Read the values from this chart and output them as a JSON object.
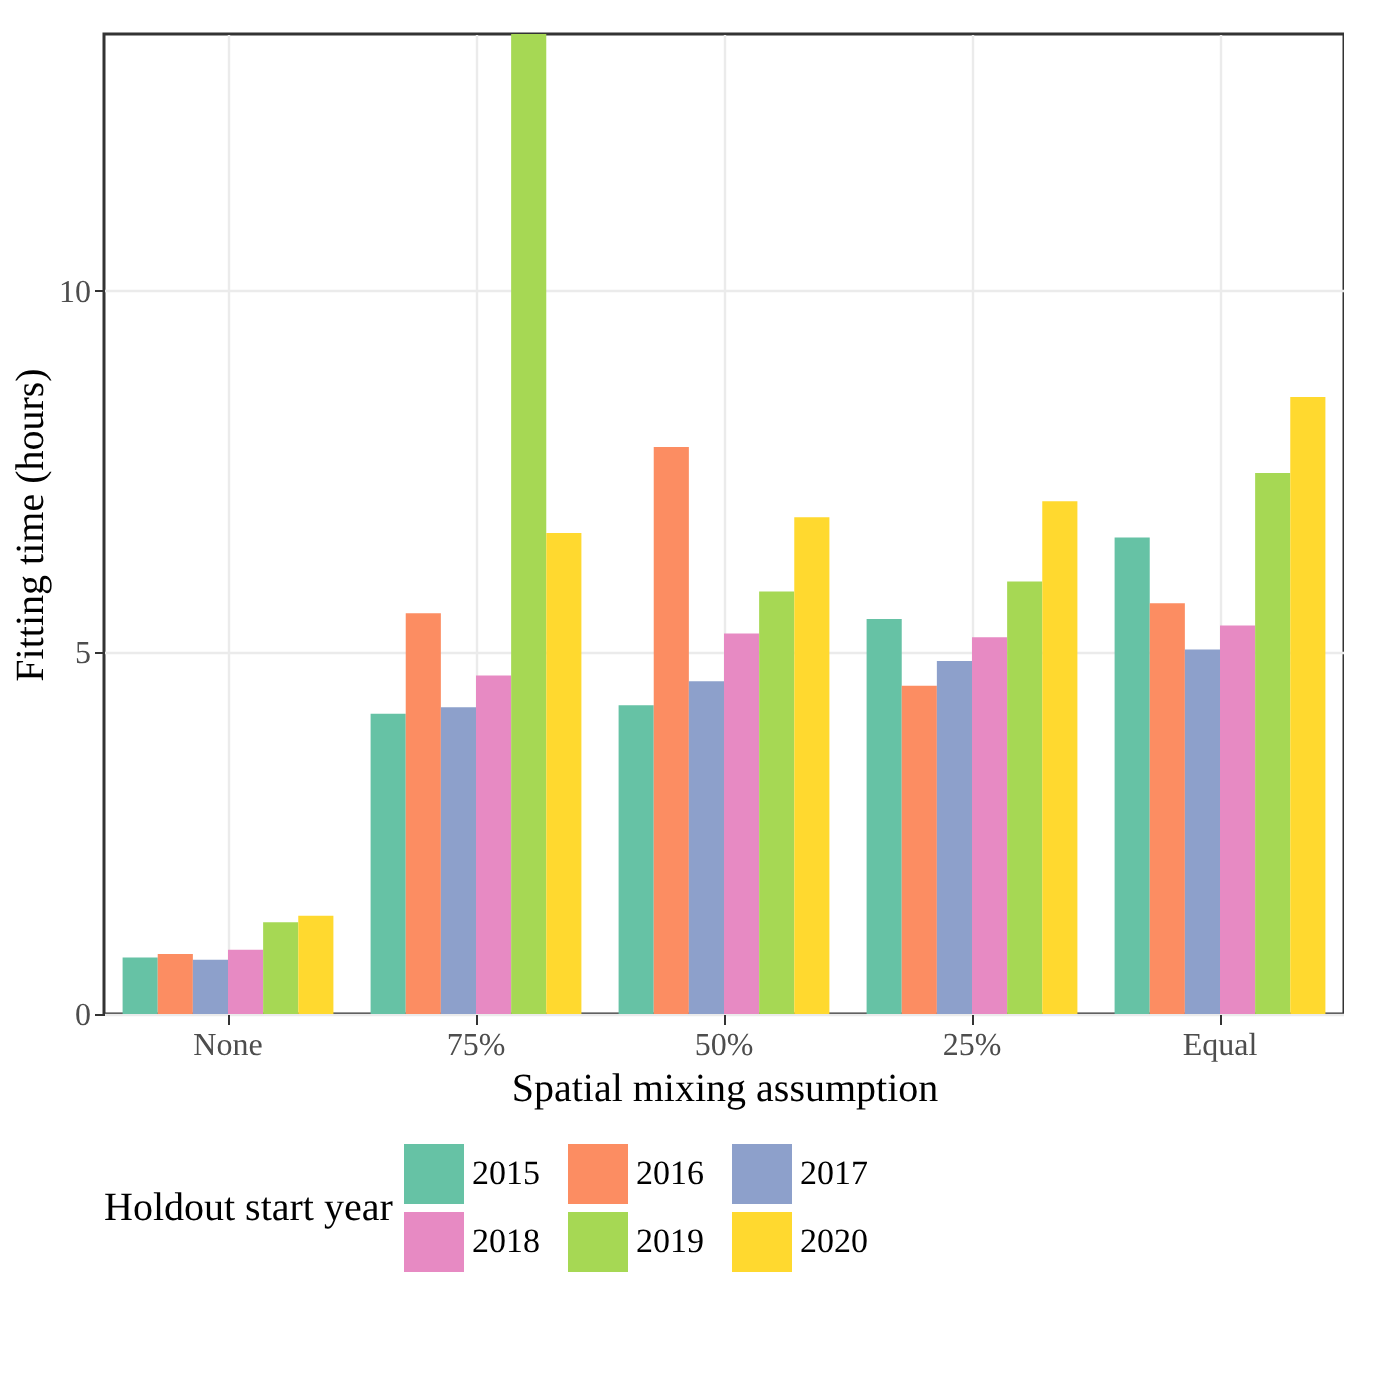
{
  "chart_data": {
    "type": "bar",
    "xlabel": "Spatial mixing assumption",
    "ylabel": "Fitting time (hours)",
    "legend_title": "Holdout start year",
    "categories": [
      "None",
      "75%",
      "50%",
      "25%",
      "Equal"
    ],
    "series": [
      {
        "name": "2015",
        "color": "#66c2a5",
        "values": [
          0.78,
          4.15,
          4.27,
          5.46,
          6.59
        ]
      },
      {
        "name": "2016",
        "color": "#fc8d62",
        "values": [
          0.83,
          5.54,
          7.84,
          4.54,
          5.68
        ]
      },
      {
        "name": "2017",
        "color": "#8da0cb",
        "values": [
          0.75,
          4.24,
          4.6,
          4.88,
          5.04
        ]
      },
      {
        "name": "2018",
        "color": "#e78ac3",
        "values": [
          0.89,
          4.68,
          5.26,
          5.21,
          5.37
        ]
      },
      {
        "name": "2019",
        "color": "#a6d854",
        "values": [
          1.27,
          13.55,
          5.84,
          5.98,
          7.48
        ]
      },
      {
        "name": "2020",
        "color": "#ffd92f",
        "values": [
          1.36,
          6.65,
          6.87,
          7.09,
          8.53
        ]
      }
    ],
    "ylim": [
      0,
      13.55
    ],
    "yticks": [
      0,
      5,
      10
    ],
    "grid": true,
    "legend": "bottom"
  }
}
